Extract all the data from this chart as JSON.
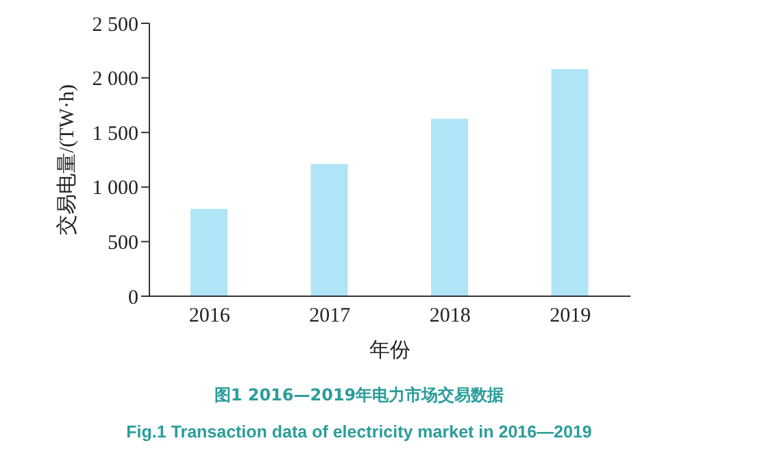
{
  "chart_data": {
    "type": "bar",
    "title": "图1 2016—2019年电力市场交易数据",
    "subtitle": "Fig.1 Transaction data of electricity market in 2016—2019",
    "xlabel": "年份",
    "ylabel": "交易电量/(TW·h)",
    "categories": [
      "2016",
      "2017",
      "2018",
      "2019"
    ],
    "values": [
      800,
      1210,
      1625,
      2080
    ],
    "color": "#b0e4f7",
    "ylim": [
      0,
      2500
    ],
    "yticks": [
      0,
      500,
      {
        "value": 1000,
        "label": "1 000"
      },
      {
        "value": 1500,
        "label": "1 500"
      },
      {
        "value": 2000,
        "label": "2 000"
      },
      {
        "value": 2500,
        "label": "2 500"
      }
    ],
    "grid": false
  }
}
